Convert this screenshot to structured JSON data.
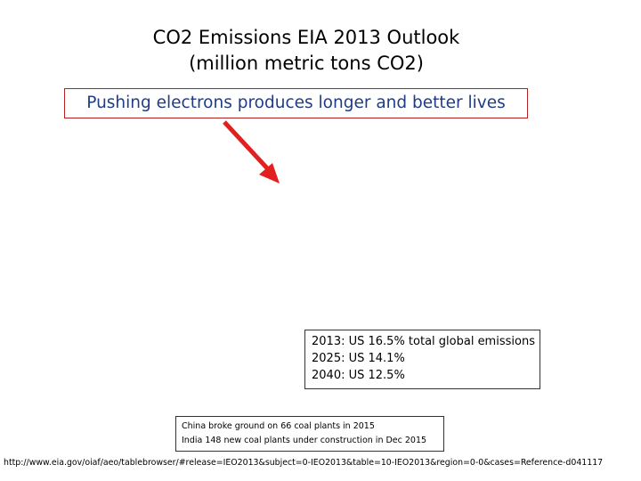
{
  "title": {
    "line1": "CO2 Emissions EIA 2013 Outlook",
    "line2": "(million metric tons CO2)"
  },
  "callout": {
    "text": "Pushing electrons produces longer and better lives",
    "border_color": "#b22222",
    "text_color": "#1f3c88"
  },
  "arrow": {
    "color": "#e32020"
  },
  "stats": {
    "lines": [
      "2013: US 16.5% total global emissions",
      "2025: US 14.1%",
      "2040: US 12.5%"
    ]
  },
  "notes": {
    "lines": [
      "China broke ground on 66 coal plants in 2015",
      "India 148 new coal plants under construction in Dec 2015"
    ]
  },
  "source": {
    "url": "http://www.eia.gov/oiaf/aeo/tablebrowser/#release=IEO2013&subject=0-IEO2013&table=10-IEO2013&region=0-0&cases=Reference-d041117"
  }
}
